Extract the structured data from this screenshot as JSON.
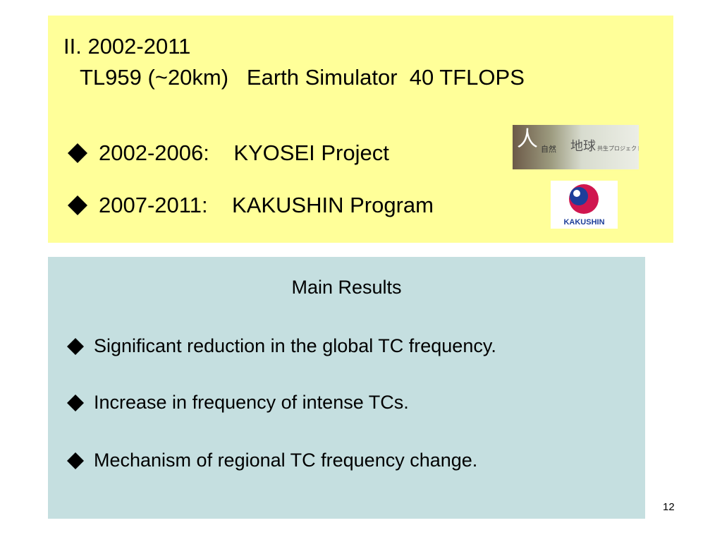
{
  "top_box": {
    "title": "II. 2002-2011",
    "subtitle": "TL959 (~20km)   Earth Simulator  40 TFLOPS",
    "items": [
      "2002-2006:    KYOSEI Project",
      "2007-2011:    KAKUSHIN Program"
    ],
    "kyosei_logo": {
      "texts": [
        "人",
        "自然",
        "地球",
        "共生プロジェクト"
      ]
    },
    "kakushin_logo": {
      "text": "KAKUSHIN"
    }
  },
  "results_box": {
    "heading": "Main Results",
    "items": [
      "Significant reduction in the global TC frequency.",
      "Increase in frequency of intense TCs.",
      "Mechanism of regional TC frequency change."
    ]
  },
  "page_number": "12"
}
